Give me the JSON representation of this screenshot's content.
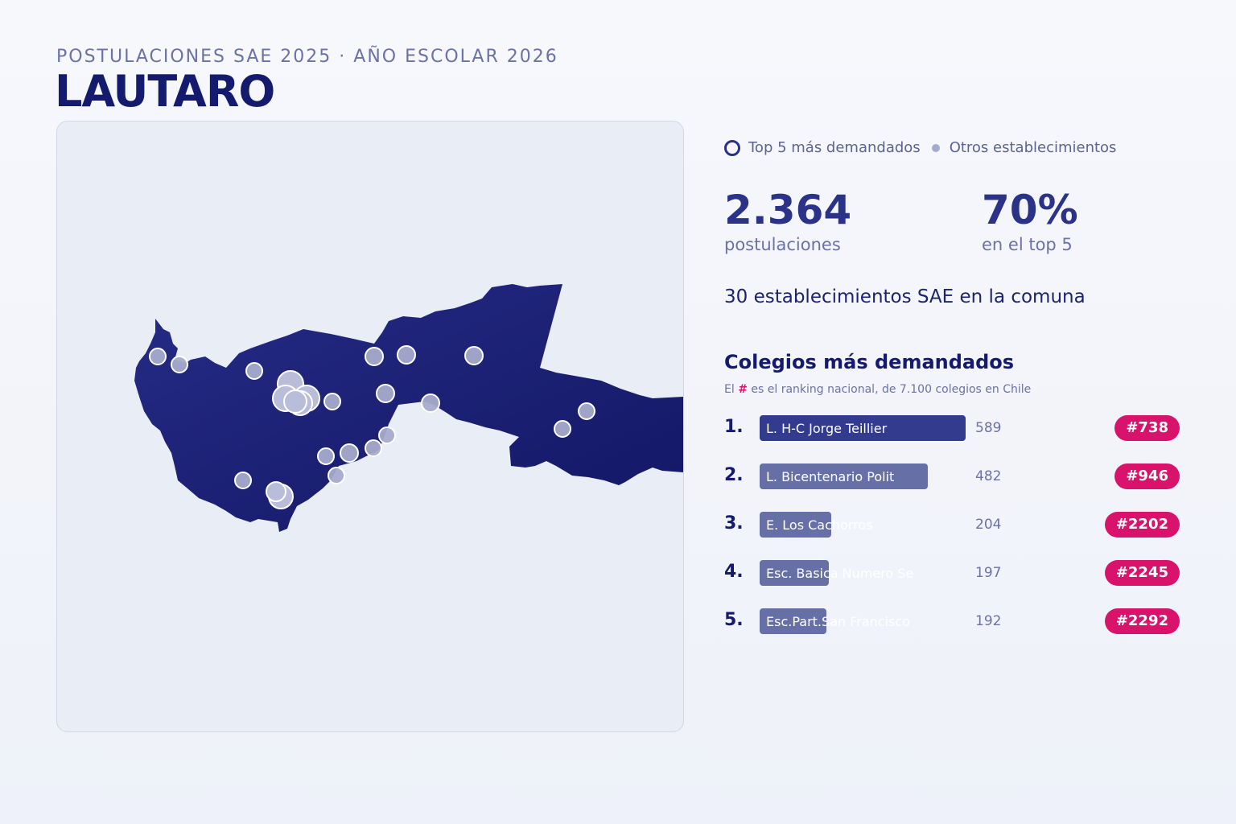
{
  "header": {
    "subtitle": "POSTULACIONES SAE 2025 · AÑO ESCOLAR 2026",
    "title": "LAUTARO"
  },
  "legend": {
    "top5_label": "Top 5 más demandados",
    "others_label": "Otros establecimientos"
  },
  "stats": {
    "applications_value": "2.364",
    "applications_label": "postulaciones",
    "top5_share_value": "70%",
    "top5_share_label": "en el top 5"
  },
  "establishments_line": "30 establecimientos SAE en la comuna",
  "ranking": {
    "title": "Colegios más demandados",
    "note_prefix": "El",
    "note_hash": "#",
    "note_suffix": "es el ranking nacional, de 7.100 colegios en Chile",
    "max_value": 589,
    "schools": [
      {
        "rank": "1.",
        "name": "L. H-C Jorge Teillier",
        "value": 589,
        "value_text": "589",
        "badge": "#738",
        "color": "#333b8e"
      },
      {
        "rank": "2.",
        "name": "L. Bicentenario Polit",
        "value": 482,
        "value_text": "482",
        "badge": "#946",
        "color": "#6670a6"
      },
      {
        "rank": "3.",
        "name": "E. Los Cachorros",
        "value": 204,
        "value_text": "204",
        "badge": "#2202",
        "color": "#6670a6"
      },
      {
        "rank": "4.",
        "name": "Esc. Basica Numero Se",
        "value": 197,
        "value_text": "197",
        "badge": "#2245",
        "color": "#6670a6"
      },
      {
        "rank": "5.",
        "name": "Esc.Part.San Francisco",
        "value": 192,
        "value_text": "192",
        "badge": "#2292",
        "color": "#6670a6"
      }
    ]
  },
  "colors": {
    "map_fill": "#1f2478",
    "accent": "#d9126b",
    "marker": "#a6abcc"
  }
}
